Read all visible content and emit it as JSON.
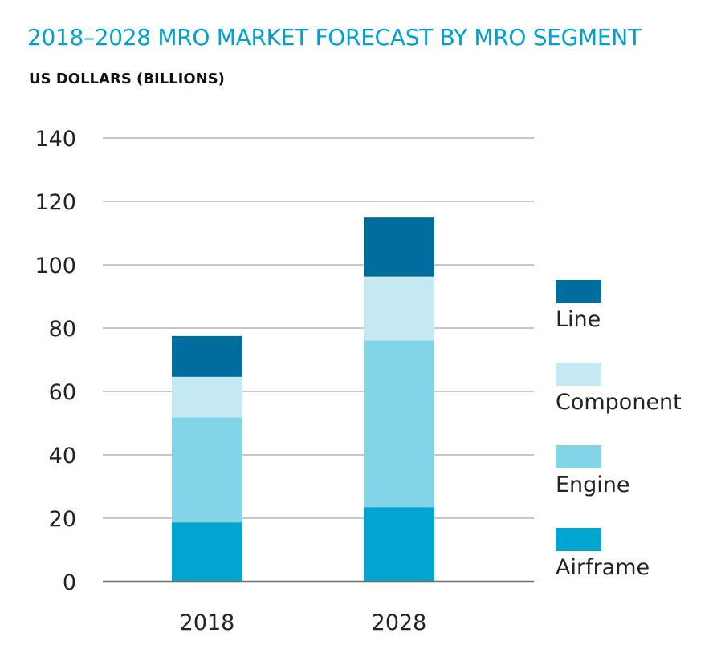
{
  "chart_data": {
    "type": "bar",
    "stacked": true,
    "title": "2018–2028 MRO MARKET FORECAST BY MRO SEGMENT",
    "subtitle": "US DOLLARS (BILLIONS)",
    "categories": [
      "2018",
      "2028"
    ],
    "series": [
      {
        "name": "Airframe",
        "values": [
          18.7,
          23.5
        ],
        "color": "#00a5d0"
      },
      {
        "name": "Engine",
        "values": [
          33.1,
          52.6
        ],
        "color": "#82d4e6"
      },
      {
        "name": "Component",
        "values": [
          12.8,
          20.2
        ],
        "color": "#c4e9f2"
      },
      {
        "name": "Line",
        "values": [
          12.9,
          18.6
        ],
        "color": "#006d9f"
      }
    ],
    "legend_order": [
      "Line",
      "Component",
      "Engine",
      "Airframe"
    ],
    "legend_position": "right",
    "ylim": [
      0,
      140
    ],
    "yticks": [
      0,
      20,
      40,
      60,
      80,
      100,
      120,
      140
    ],
    "grid": true,
    "xlabel": "",
    "ylabel": ""
  },
  "colors": {
    "title": "#00a0d2",
    "grid": "#c8c8c8",
    "axis": "#6e6e6e"
  }
}
